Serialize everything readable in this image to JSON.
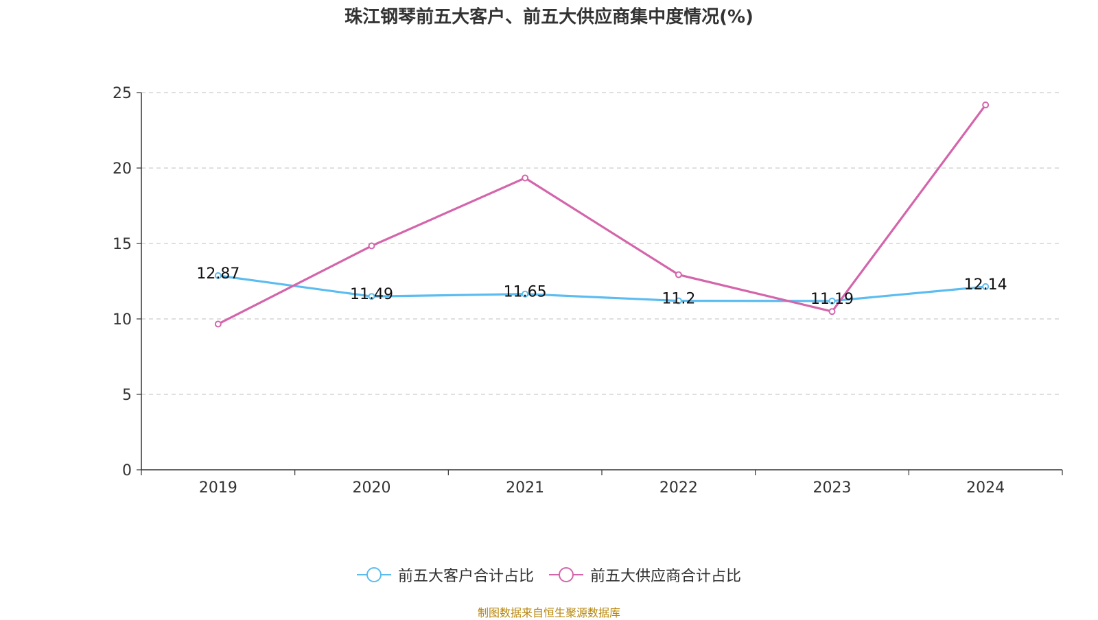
{
  "chart_data": {
    "type": "line",
    "title": "珠江钢琴前五大客户、前五大供应商集中度情况(%)",
    "categories": [
      "2019",
      "2020",
      "2021",
      "2022",
      "2023",
      "2024"
    ],
    "ylim": [
      0,
      25
    ],
    "yticks": [
      0,
      5,
      10,
      15,
      20,
      25
    ],
    "grid": true,
    "legend_position": "bottom-center",
    "series": [
      {
        "name": "前五大客户合计占比",
        "color": "#5bbcf0",
        "values": [
          12.87,
          11.49,
          11.65,
          11.2,
          11.19,
          12.14
        ],
        "labels": [
          "12.87",
          "11.49",
          "11.65",
          "11.2",
          "11.19",
          "12.14"
        ]
      },
      {
        "name": "前五大供应商合计占比",
        "color": "#d465ab",
        "values": [
          9.66,
          14.84,
          19.34,
          12.93,
          10.49,
          24.18
        ]
      }
    ]
  },
  "source_note": "制图数据来自恒生聚源数据库"
}
